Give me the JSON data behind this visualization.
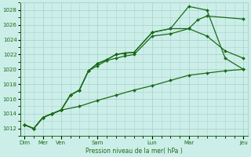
{
  "xlabel": "Pression niveau de la mer( hPa )",
  "bg_color": "#cceee8",
  "grid_color": "#aad4ce",
  "line_color": "#1a6b1a",
  "ylim": [
    1011.5,
    1028.8
  ],
  "yticks": [
    1012,
    1014,
    1016,
    1018,
    1020,
    1022,
    1024,
    1026,
    1028
  ],
  "xlim": [
    -0.5,
    24.5
  ],
  "xtick_positions": [
    0,
    2,
    4,
    8,
    14,
    18,
    24
  ],
  "xtick_labels": [
    "Dim",
    "Mer",
    "Ven",
    "Sam",
    "Lun",
    "Mar",
    "Jeu"
  ],
  "line1_x": [
    0,
    1,
    2,
    3,
    4,
    5,
    6,
    7,
    8,
    9,
    10,
    11,
    12,
    14,
    16,
    18,
    19,
    20,
    24
  ],
  "line1_y": [
    1012.5,
    1012.0,
    1013.5,
    1014.0,
    1014.5,
    1016.5,
    1017.2,
    1019.8,
    1020.5,
    1021.2,
    1021.5,
    1021.8,
    1022.0,
    1024.5,
    1024.8,
    1025.5,
    1026.7,
    1027.2,
    1026.8
  ],
  "line2_x": [
    0,
    1,
    2,
    3,
    4,
    5,
    6,
    7,
    8,
    9,
    10,
    11,
    12,
    14,
    16,
    18,
    20,
    22,
    24
  ],
  "line2_y": [
    1012.5,
    1012.0,
    1013.5,
    1014.0,
    1014.5,
    1016.5,
    1017.2,
    1019.8,
    1020.8,
    1021.3,
    1022.0,
    1022.2,
    1022.3,
    1025.0,
    1025.5,
    1028.5,
    1028.0,
    1021.5,
    1020.0
  ],
  "line3_x": [
    0,
    1,
    2,
    3,
    4,
    5,
    6,
    7,
    8,
    9,
    10,
    11,
    12,
    14,
    16,
    18,
    20,
    22,
    24
  ],
  "line3_y": [
    1012.5,
    1012.0,
    1013.5,
    1014.0,
    1014.5,
    1016.5,
    1017.2,
    1019.8,
    1020.8,
    1021.3,
    1022.0,
    1022.2,
    1022.3,
    1025.0,
    1025.5,
    1025.5,
    1024.5,
    1022.5,
    1021.5
  ],
  "line4_x": [
    0,
    1,
    2,
    3,
    4,
    6,
    8,
    10,
    12,
    14,
    16,
    18,
    20,
    22,
    24
  ],
  "line4_y": [
    1012.5,
    1012.0,
    1013.5,
    1014.0,
    1014.5,
    1015.0,
    1015.8,
    1016.5,
    1017.2,
    1017.8,
    1018.5,
    1019.2,
    1019.5,
    1019.8,
    1020.0
  ]
}
